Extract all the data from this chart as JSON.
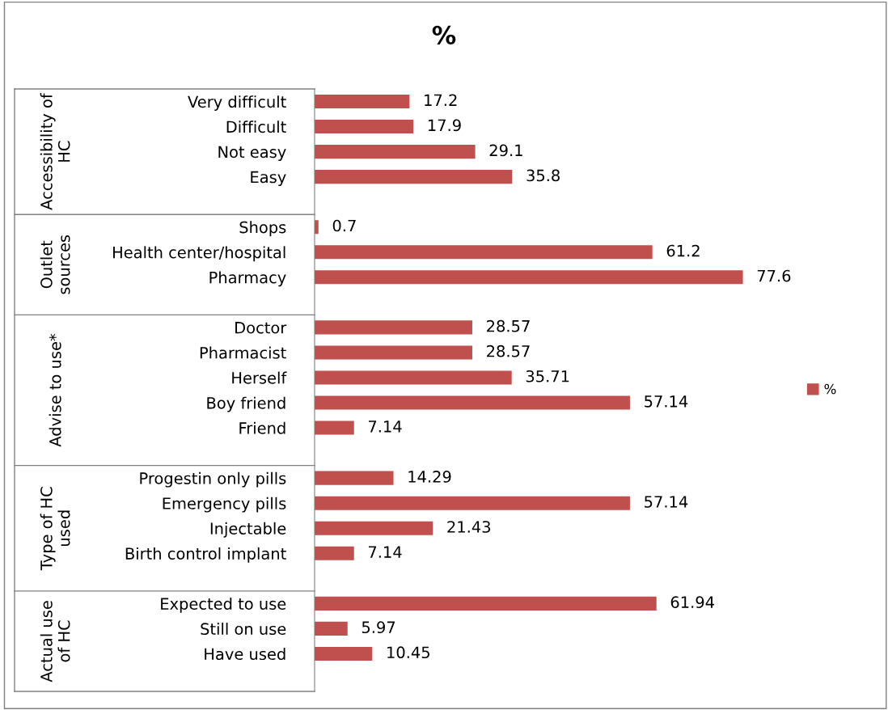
{
  "chart_data": {
    "type": "bar",
    "orientation": "horizontal",
    "title": "%",
    "categories": [
      "Very difficult",
      "Difficult",
      "Not easy",
      "Easy",
      null,
      "Shops",
      "Health center/hospital",
      "Pharmacy",
      null,
      "Doctor",
      "Pharmacist",
      "Herself",
      "Boy friend",
      "Friend",
      null,
      "Progestin only pills",
      "Emergency pills",
      "Injectable",
      "Birth control implant",
      null,
      "Expected to use",
      "Still on use",
      "Have used",
      null
    ],
    "series": [
      {
        "name": "%",
        "color": "#c0504d",
        "values": [
          17.2,
          17.9,
          29.1,
          35.8,
          null,
          0.7,
          61.2,
          77.6,
          null,
          28.57,
          28.57,
          35.71,
          57.14,
          7.14,
          null,
          14.29,
          57.14,
          21.43,
          7.14,
          null,
          61.94,
          5.97,
          10.45,
          null
        ]
      }
    ],
    "annotations": [
      "Accessibility of\nHC",
      "Outlet\nsources",
      "Advise to use*",
      "Type of HC\nused",
      "Actual use\nof HC"
    ],
    "data_labels": true,
    "legend": "right",
    "grid": false
  }
}
